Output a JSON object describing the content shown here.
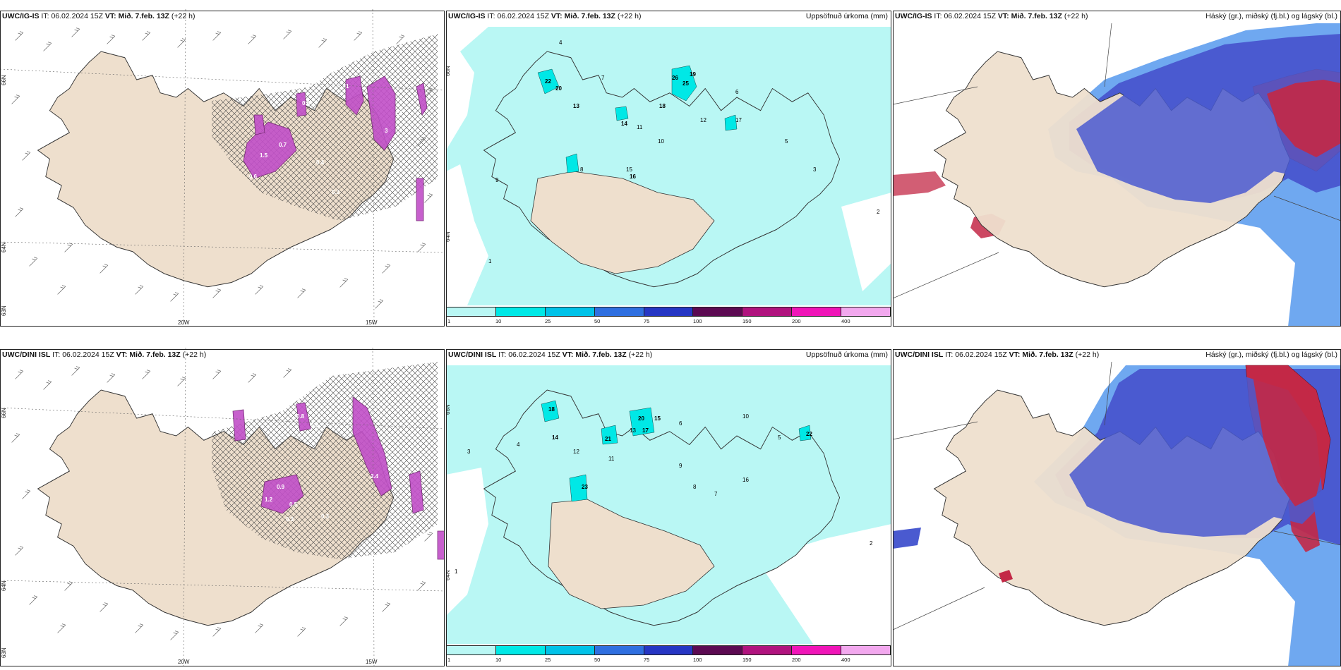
{
  "rows": [
    {
      "model": "UWC/IG-IS",
      "it_label": "IT:",
      "it_value": "06.02.2024 15Z",
      "vt_label": "VT:",
      "vt_value": "Mið. 7.feb. 13Z",
      "lead": "(+22 h)"
    },
    {
      "model": "UWC/DINI ISL",
      "it_label": "IT:",
      "it_value": "06.02.2024 15Z",
      "vt_label": "VT:",
      "vt_value": "Mið. 7.feb. 13Z",
      "lead": "(+22 h)"
    }
  ],
  "panel_titles": {
    "precip": "Uppsöfnuð úrkoma (mm)",
    "clouds": "Háský (gr.), miðský (fj.bl.) og lágský (bl.)"
  },
  "axis_labels": {
    "lat_66": "66N",
    "lat_64": "64N",
    "lat_63": "63N",
    "lon_20": "20W",
    "lon_15": "15W"
  },
  "colorbar": {
    "ticks": [
      "1",
      "10",
      "25",
      "50",
      "75",
      "100",
      "150",
      "200",
      "400"
    ],
    "colors": [
      "#b9f7f4",
      "#00e8e6",
      "#00c2e8",
      "#2f6fe0",
      "#2636c4",
      "#5c0a52",
      "#b0137e",
      "#f015b8",
      "#f2a8ee"
    ]
  },
  "wind_values": [
    [
      "1",
      "0.6",
      "1.5",
      "0.7",
      "0.4",
      "0.6",
      "1.7",
      "0.3",
      "3"
    ],
    [
      "0.8",
      "0.5",
      "2",
      "1.2",
      "0.9",
      "0.5",
      "0.3",
      "0.3",
      "2.4"
    ]
  ],
  "precip_values": [
    [
      "26",
      "25",
      "22",
      "20",
      "19",
      "18",
      "17",
      "16",
      "15",
      "14",
      "13",
      "12",
      "11",
      "10",
      "9",
      "8",
      "7",
      "6",
      "5",
      "4",
      "3",
      "2",
      "1"
    ],
    [
      "23",
      "22",
      "21",
      "20",
      "18",
      "17",
      "16",
      "15",
      "14",
      "13",
      "12",
      "11",
      "10",
      "9",
      "8",
      "7",
      "6",
      "5",
      "4",
      "3",
      "2",
      "1"
    ]
  ],
  "colors": {
    "land": "#eedfcd",
    "precip_light": "#b9f7f4",
    "precip_mid": "#00e8e6",
    "precip_high": "#00c2e8",
    "cloud_high": "#c32846",
    "cloud_mid": "#4a5ad0",
    "cloud_low": "#6fa8f0",
    "wind_precip": "#c14fc8"
  }
}
